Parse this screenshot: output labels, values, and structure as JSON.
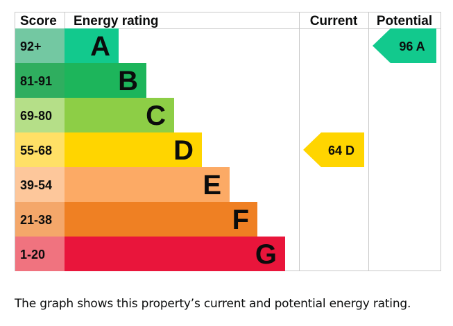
{
  "chart_data": {
    "type": "bar",
    "headers": {
      "score": "Score",
      "rating": "Energy rating",
      "current": "Current",
      "potential": "Potential"
    },
    "bands": [
      {
        "score": "92+",
        "letter": "A",
        "color": "#008054",
        "score_bg": "#73C8A2",
        "width": 1
      },
      {
        "score": "81-91",
        "letter": "B",
        "color": "#19B459",
        "score_bg": "#2FAE5F",
        "width": 2
      },
      {
        "score": "69-80",
        "letter": "C",
        "color": "#8DCE46",
        "score_bg": "#B5DF88",
        "width": 3
      },
      {
        "score": "55-68",
        "letter": "D",
        "color": "#FFD500",
        "score_bg": "#FFE066",
        "width": 4
      },
      {
        "score": "39-54",
        "letter": "E",
        "color": "#FCAA65",
        "score_bg": "#FDC79B",
        "width": 5
      },
      {
        "score": "21-38",
        "letter": "F",
        "color": "#EF8023",
        "score_bg": "#F4A76A",
        "width": 6
      },
      {
        "score": "1-20",
        "letter": "G",
        "color": "#E9153B",
        "score_bg": "#F0737F",
        "width": 7
      }
    ],
    "band_colors_display": [
      "#12C98D",
      "#1DB55B",
      "#8DCE46",
      "#FFD500",
      "#FCAA65",
      "#EF8023",
      "#E9153B"
    ],
    "current": {
      "value": 64,
      "letter": "D",
      "label": "64  D",
      "color": "#FFD500"
    },
    "potential": {
      "value": 96,
      "letter": "A",
      "label": "96  A",
      "color": "#12C98D"
    }
  },
  "caption": "The graph shows this property’s current and potential energy rating."
}
